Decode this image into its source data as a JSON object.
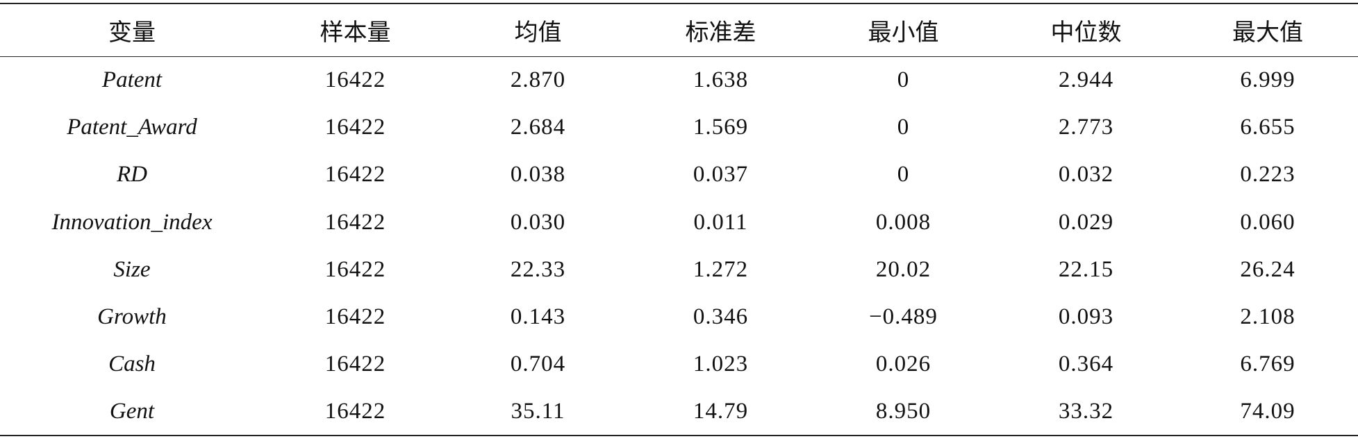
{
  "table": {
    "header": [
      "变量",
      "样本量",
      "均值",
      "标准差",
      "最小值",
      "中位数",
      "最大值"
    ],
    "rows": [
      [
        "Patent",
        "16422",
        "2.870",
        "1.638",
        "0",
        "2.944",
        "6.999"
      ],
      [
        "Patent_Award",
        "16422",
        "2.684",
        "1.569",
        "0",
        "2.773",
        "6.655"
      ],
      [
        "RD",
        "16422",
        "0.038",
        "0.037",
        "0",
        "0.032",
        "0.223"
      ],
      [
        "Innovation_index",
        "16422",
        "0.030",
        "0.011",
        "0.008",
        "0.029",
        "0.060"
      ],
      [
        "Size",
        "16422",
        "22.33",
        "1.272",
        "20.02",
        "22.15",
        "26.24"
      ],
      [
        "Growth",
        "16422",
        "0.143",
        "0.346",
        "−0.489",
        "0.093",
        "2.108"
      ],
      [
        "Cash",
        "16422",
        "0.704",
        "1.023",
        "0.026",
        "0.364",
        "6.769"
      ],
      [
        "Gent",
        "16422",
        "35.11",
        "14.79",
        "8.950",
        "33.32",
        "74.09"
      ]
    ]
  }
}
